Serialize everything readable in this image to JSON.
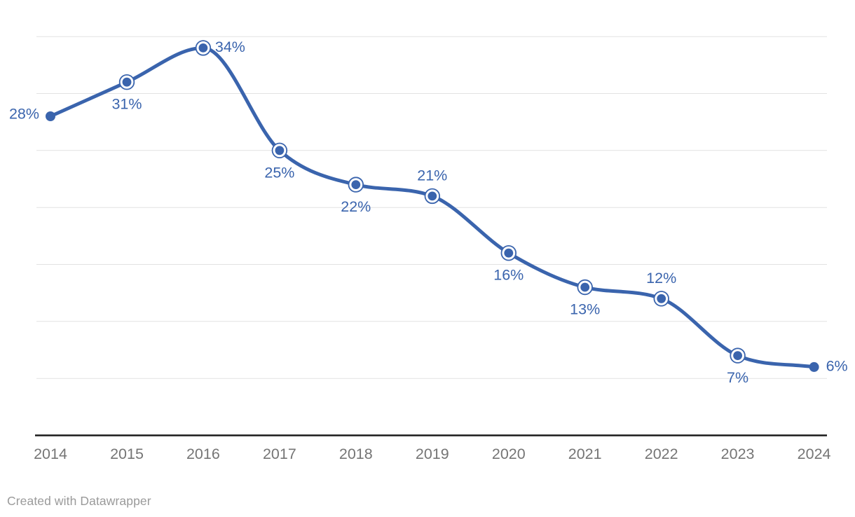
{
  "chart_data": {
    "type": "line",
    "title": "",
    "xlabel": "",
    "ylabel": "",
    "unit": "%",
    "categories": [
      "2014",
      "2015",
      "2016",
      "2017",
      "2018",
      "2019",
      "2020",
      "2021",
      "2022",
      "2023",
      "2024"
    ],
    "values": [
      28,
      31,
      34,
      25,
      22,
      21,
      16,
      13,
      12,
      7,
      6
    ],
    "data_labels": [
      "28%",
      "31%",
      "34%",
      "25%",
      "22%",
      "21%",
      "16%",
      "13%",
      "12%",
      "7%",
      "6%"
    ],
    "label_positions": [
      "left",
      "below",
      "right",
      "below",
      "below",
      "above",
      "below",
      "below",
      "above",
      "below",
      "right"
    ],
    "ring_markers": [
      false,
      true,
      true,
      true,
      true,
      true,
      true,
      true,
      true,
      true,
      false
    ],
    "ylim": [
      0,
      36
    ],
    "y_gridlines": [
      5,
      10,
      15,
      20,
      25,
      30,
      35
    ],
    "grid": "horizontal",
    "legend": "none",
    "curve": "smooth-monotone"
  },
  "colors": {
    "line": "#3a64ad",
    "marker_fill": "#3a64ad",
    "marker_ring_fill": "#ffffff",
    "value_label": "#3a64ad",
    "gridline": "#e2e2e2",
    "axis_line": "#1a1a1a",
    "tick_label": "#757575",
    "background": "#ffffff",
    "credit_text": "#9a9a9a"
  },
  "footer": {
    "credit": "Created with Datawrapper"
  }
}
